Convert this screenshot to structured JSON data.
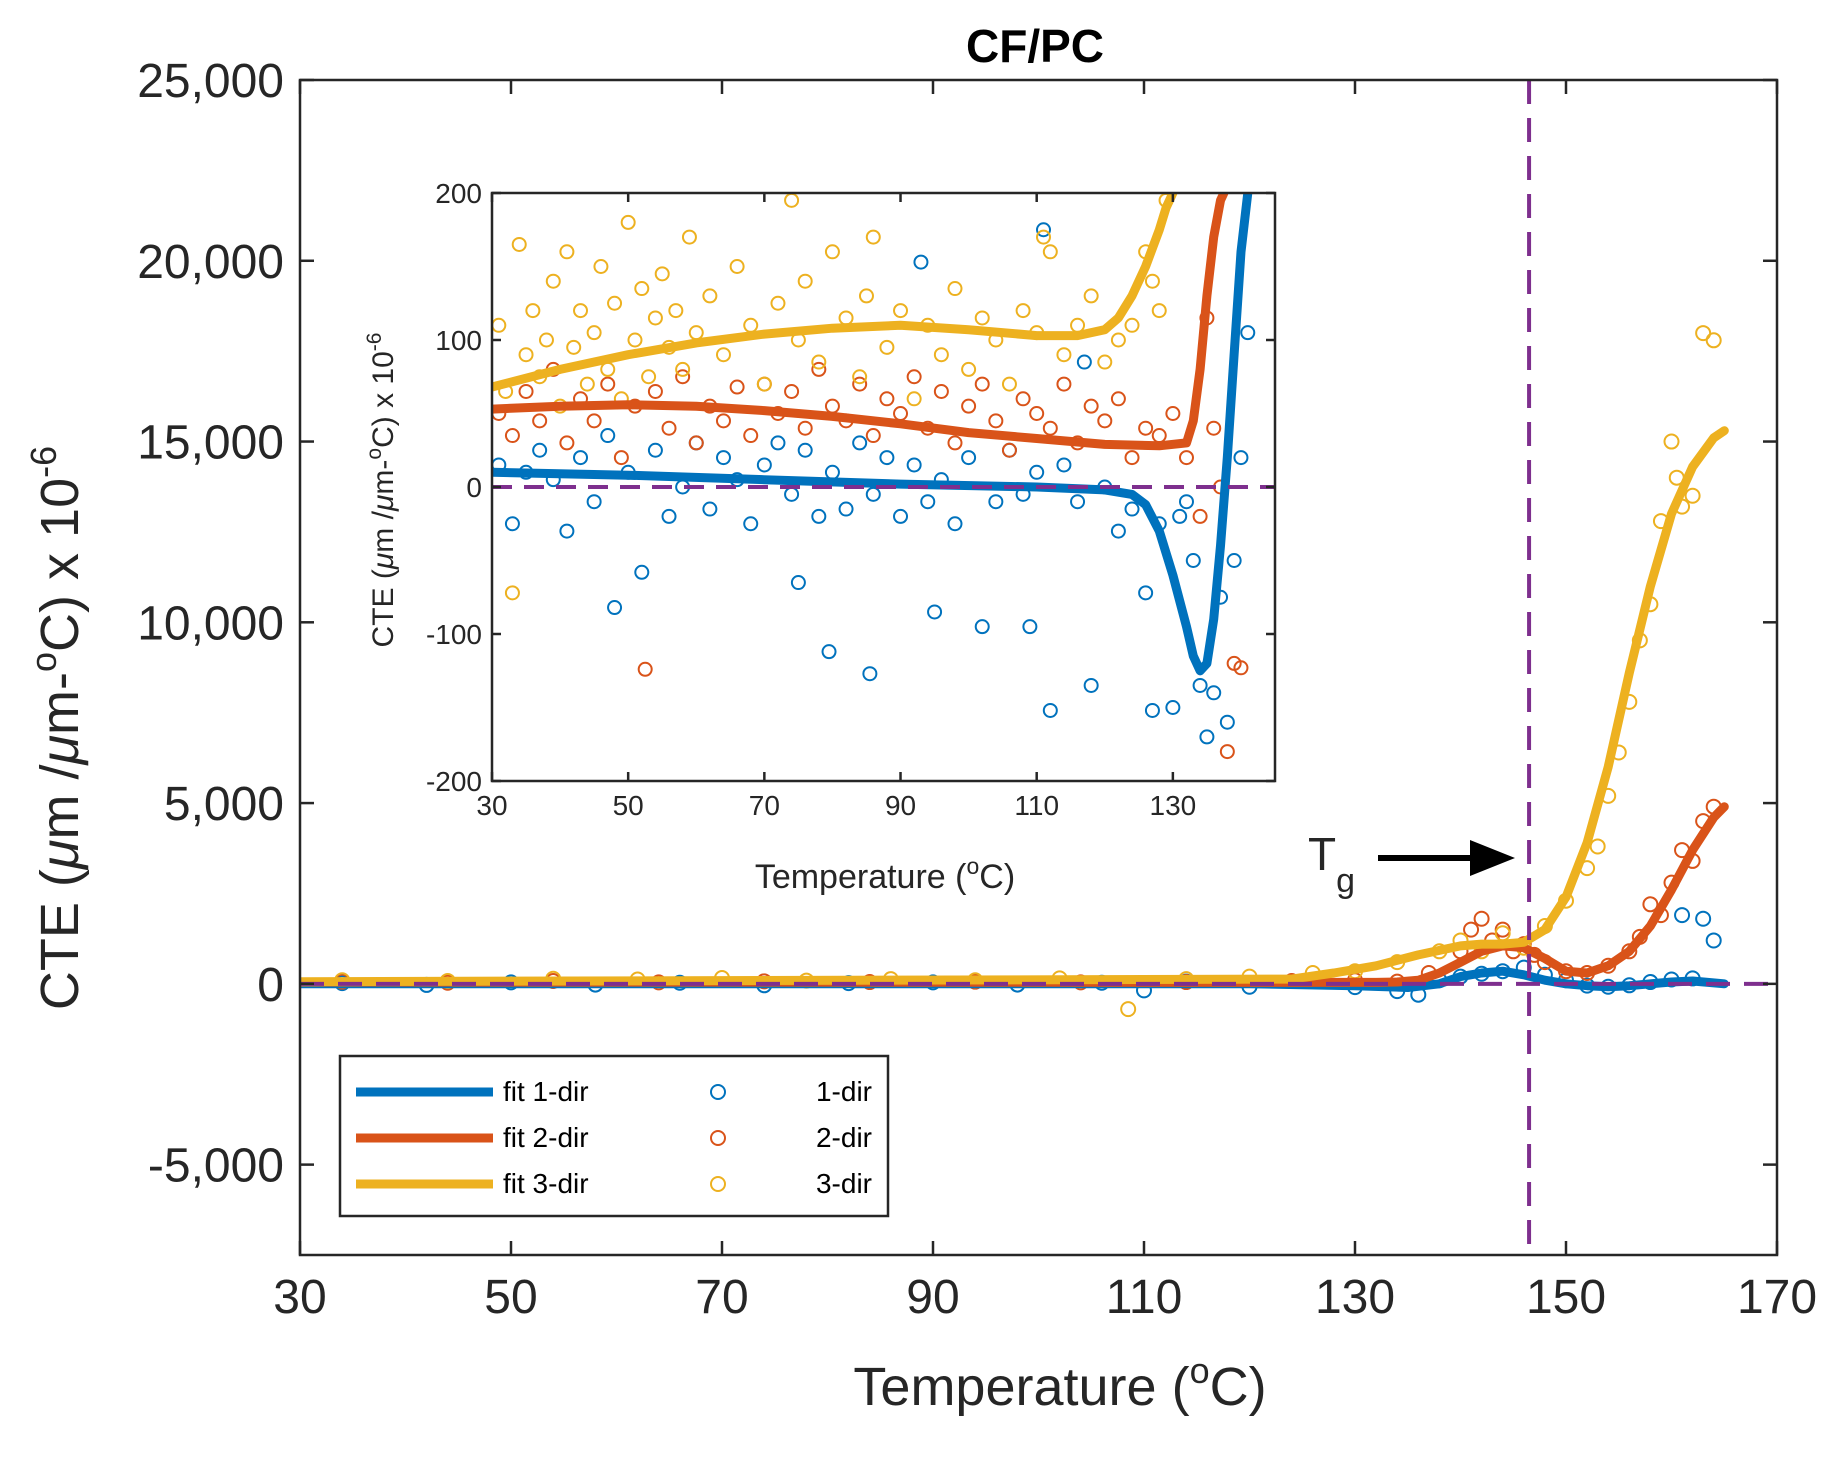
{
  "chart_data": [
    {
      "id": "main",
      "type": "scatter",
      "title": "CF/PC",
      "xlabel": {
        "pre": "Temperature (",
        "sup": "o",
        "post": "C)"
      },
      "ylabel": {
        "pre": "CTE (",
        "mu1": "μ",
        "mid1": "m /",
        "mu2": "μ",
        "mid2": "m-",
        "sup1": "o",
        "mid3": "C) x 10",
        "sup2": "-6"
      },
      "xlim": [
        30,
        170
      ],
      "ylim": [
        -7500,
        25000
      ],
      "xticks": [
        30,
        50,
        70,
        90,
        110,
        130,
        150,
        170
      ],
      "xtick_labels": [
        "30",
        "50",
        "70",
        "90",
        "110",
        "130",
        "150",
        "170"
      ],
      "yticks": [
        -5000,
        0,
        5000,
        10000,
        15000,
        20000,
        25000
      ],
      "ytick_labels": [
        "-5,000",
        "0",
        "5,000",
        "10,000",
        "15,000",
        "20,000",
        "25,000"
      ],
      "reference_lines": [
        {
          "orientation": "horizontal",
          "value": 0,
          "style": "dashed",
          "color": "#7E2F8E"
        },
        {
          "orientation": "vertical",
          "value": 146.5,
          "style": "dashed",
          "color": "#7E2F8E"
        }
      ],
      "annotation": {
        "text": "T",
        "sub": "g",
        "arrow": "points right to Tg line",
        "x": 146.5,
        "y": 3600
      },
      "fit_series": [
        {
          "name": "fit 1-dir",
          "color": "#0072BD",
          "x": [
            30,
            120,
            130,
            135,
            138,
            140,
            142,
            144,
            146,
            148,
            150,
            152,
            154,
            156,
            158,
            160,
            162,
            165
          ],
          "y": [
            0,
            0,
            -50,
            -100,
            0,
            200,
            300,
            350,
            250,
            100,
            0,
            -50,
            -80,
            -50,
            0,
            50,
            80,
            0
          ]
        },
        {
          "name": "fit 2-dir",
          "color": "#D95319",
          "x": [
            30,
            132,
            134,
            136,
            138,
            140,
            142,
            144,
            146,
            148,
            150,
            152,
            154,
            156,
            158,
            160,
            162,
            164,
            165
          ],
          "y": [
            50,
            40,
            50,
            100,
            300,
            600,
            900,
            1050,
            1000,
            700,
            350,
            300,
            500,
            900,
            1600,
            2600,
            3700,
            4600,
            4900
          ]
        },
        {
          "name": "fit 3-dir",
          "color": "#EDB120",
          "x": [
            30,
            124,
            128,
            132,
            136,
            140,
            142,
            144,
            146,
            148,
            150,
            152,
            154,
            156,
            158,
            160,
            162,
            164,
            165
          ],
          "y": [
            60,
            130,
            300,
            500,
            800,
            1050,
            1100,
            1100,
            1150,
            1500,
            2400,
            3900,
            6000,
            8600,
            11000,
            13000,
            14300,
            15100,
            15300
          ]
        }
      ],
      "scatter_series": [
        {
          "name": "1-dir",
          "color": "#0072BD",
          "x": [
            34,
            42,
            50,
            58,
            66,
            74,
            82,
            90,
            98,
            106,
            110,
            114,
            120,
            126,
            130,
            134,
            136,
            138,
            140,
            142,
            144,
            146,
            148,
            150,
            152,
            154,
            156,
            158,
            160,
            161,
            162,
            163,
            164
          ],
          "y": [
            20,
            -30,
            40,
            -20,
            30,
            -40,
            20,
            40,
            -20,
            30,
            -180,
            60,
            -80,
            100,
            -90,
            -200,
            -300,
            100,
            200,
            280,
            350,
            450,
            250,
            100,
            -50,
            -80,
            -40,
            50,
            120,
            1900,
            150,
            1800,
            1200
          ]
        },
        {
          "name": "2-dir",
          "color": "#D95319",
          "x": [
            34,
            44,
            54,
            64,
            74,
            84,
            94,
            104,
            114,
            124,
            130,
            134,
            137,
            140,
            141,
            142,
            143,
            144,
            145,
            146,
            147,
            148,
            150,
            152,
            154,
            156,
            157,
            158,
            159,
            160,
            161,
            162,
            163,
            164
          ],
          "y": [
            60,
            30,
            80,
            40,
            70,
            50,
            60,
            40,
            50,
            80,
            100,
            60,
            300,
            900,
            1500,
            1800,
            1200,
            1500,
            900,
            1100,
            800,
            600,
            350,
            300,
            500,
            900,
            1300,
            2200,
            1900,
            2800,
            3700,
            3400,
            4500,
            4900
          ]
        },
        {
          "name": "3-dir",
          "color": "#EDB120",
          "x": [
            34,
            44,
            54,
            62,
            70,
            78,
            86,
            94,
            102,
            108.5,
            114,
            120,
            126,
            130,
            134,
            138,
            140,
            142,
            144,
            146,
            148,
            150,
            152,
            153,
            154,
            155,
            156,
            157,
            158,
            159,
            160,
            160.5,
            161,
            162,
            163,
            164
          ],
          "y": [
            100,
            80,
            140,
            120,
            160,
            90,
            130,
            100,
            150,
            -700,
            130,
            200,
            300,
            350,
            600,
            900,
            1200,
            900,
            1400,
            1000,
            1600,
            2300,
            3200,
            3800,
            5200,
            6400,
            7800,
            9500,
            10500,
            12800,
            15000,
            14000,
            13200,
            13500,
            18000,
            17800
          ]
        }
      ]
    },
    {
      "id": "inset",
      "type": "scatter",
      "xlabel": {
        "pre": "Temperature (",
        "sup": "o",
        "post": "C)"
      },
      "ylabel": {
        "pre": "CTE (",
        "mu1": "μ",
        "mid1": "m /",
        "mu2": "μ",
        "mid2": "m-",
        "sup1": "o",
        "mid3": "C) x 10",
        "sup2": "-6"
      },
      "xlim": [
        30,
        145
      ],
      "ylim": [
        -200,
        200
      ],
      "xticks": [
        30,
        50,
        70,
        90,
        110,
        130
      ],
      "xtick_labels": [
        "30",
        "50",
        "70",
        "90",
        "110",
        "130"
      ],
      "yticks": [
        -200,
        -100,
        0,
        100,
        200
      ],
      "ytick_labels": [
        "-200",
        "-100",
        "0",
        "100",
        "200"
      ],
      "reference_lines": [
        {
          "orientation": "horizontal",
          "value": 0,
          "style": "dashed",
          "color": "#7E2F8E"
        }
      ],
      "fit_series": [
        {
          "name": "fit 1-dir",
          "color": "#0072BD",
          "x": [
            30,
            50,
            70,
            90,
            110,
            120,
            124,
            126,
            128,
            130,
            132,
            133,
            134,
            135,
            136,
            137,
            138,
            139,
            140,
            141
          ],
          "y": [
            10,
            8,
            5,
            2,
            0,
            -2,
            -5,
            -12,
            -30,
            -60,
            -95,
            -115,
            -125,
            -120,
            -90,
            -40,
            20,
            90,
            160,
            200
          ]
        },
        {
          "name": "fit 2-dir",
          "color": "#D95319",
          "x": [
            30,
            40,
            50,
            60,
            70,
            80,
            90,
            100,
            110,
            120,
            128,
            132,
            133,
            134,
            135,
            136,
            137,
            137.5
          ],
          "y": [
            53,
            55,
            56,
            55,
            52,
            48,
            43,
            37,
            33,
            29,
            28,
            30,
            45,
            80,
            130,
            170,
            195,
            200
          ]
        },
        {
          "name": "fit 3-dir",
          "color": "#EDB120",
          "x": [
            30,
            40,
            50,
            60,
            70,
            80,
            90,
            100,
            110,
            116,
            120,
            122,
            124,
            126,
            128,
            129,
            130
          ],
          "y": [
            68,
            80,
            90,
            98,
            104,
            108,
            110,
            107,
            103,
            103,
            107,
            115,
            130,
            150,
            175,
            190,
            200
          ]
        }
      ],
      "scatter_series": [
        {
          "name": "1-dir",
          "color": "#0072BD",
          "x": [
            31,
            33,
            35,
            37,
            39,
            41,
            43,
            45,
            47,
            48,
            50,
            52,
            54,
            56,
            58,
            60,
            62,
            64,
            66,
            68,
            70,
            72,
            74,
            75,
            76,
            78,
            79.5,
            80,
            82,
            84,
            85.5,
            86,
            88,
            90,
            92,
            93,
            94,
            95,
            96,
            98,
            100,
            102,
            104,
            106,
            108,
            109,
            110,
            111,
            112,
            114,
            116,
            117,
            118,
            120,
            122,
            124,
            126,
            127,
            128,
            130,
            131,
            132,
            133,
            134,
            135,
            136,
            137,
            138,
            139,
            140,
            141
          ],
          "y": [
            15,
            -25,
            10,
            25,
            5,
            -30,
            20,
            -10,
            35,
            -82,
            10,
            -58,
            25,
            -20,
            0,
            30,
            -15,
            20,
            5,
            -25,
            15,
            30,
            -5,
            -65,
            25,
            -20,
            -112,
            10,
            -15,
            30,
            -127,
            -5,
            20,
            -20,
            15,
            153,
            -10,
            -85,
            5,
            -25,
            20,
            -95,
            -10,
            25,
            -5,
            -95,
            10,
            175,
            -152,
            15,
            -10,
            85,
            -135,
            0,
            -30,
            -15,
            -72,
            -152,
            -25,
            -150,
            -20,
            -10,
            -50,
            -135,
            -170,
            -140,
            -75,
            -160,
            -50,
            20,
            105
          ]
        },
        {
          "name": "2-dir",
          "color": "#D95319",
          "x": [
            31,
            33,
            35,
            37,
            39,
            41,
            43,
            45,
            47,
            49,
            51,
            52.5,
            54,
            56,
            58,
            60,
            62,
            64,
            66,
            68,
            70,
            72,
            74,
            76,
            78,
            80,
            82,
            84,
            86,
            88,
            90,
            92,
            94,
            96,
            98,
            100,
            102,
            104,
            106,
            108,
            110,
            112,
            114,
            116,
            118,
            120,
            122,
            124,
            126,
            128,
            130,
            132,
            134,
            135,
            136,
            137,
            138,
            139,
            140
          ],
          "y": [
            50,
            35,
            65,
            45,
            80,
            30,
            60,
            45,
            70,
            20,
            55,
            -124,
            65,
            40,
            75,
            30,
            55,
            45,
            68,
            35,
            70,
            50,
            65,
            40,
            80,
            55,
            45,
            70,
            35,
            60,
            50,
            75,
            40,
            65,
            30,
            55,
            70,
            45,
            25,
            60,
            50,
            40,
            70,
            30,
            55,
            45,
            60,
            20,
            40,
            35,
            50,
            20,
            -20,
            115,
            40,
            0,
            -180,
            -120,
            -123
          ]
        },
        {
          "name": "3-dir",
          "color": "#EDB120",
          "x": [
            31,
            32,
            33,
            34,
            35,
            36,
            37,
            38,
            39,
            40,
            41,
            42,
            43,
            44,
            45,
            46,
            47,
            48,
            49,
            50,
            51,
            52,
            53,
            54,
            55,
            56,
            57,
            58,
            59,
            60,
            62,
            64,
            66,
            68,
            70,
            72,
            74,
            75,
            76,
            78,
            80,
            82,
            84,
            85,
            86,
            88,
            90,
            92,
            94,
            96,
            98,
            100,
            102,
            104,
            106,
            108,
            110,
            111,
            112,
            114,
            116,
            118,
            120,
            122,
            124,
            126,
            127,
            128,
            129
          ],
          "y": [
            110,
            65,
            -72,
            165,
            90,
            120,
            75,
            100,
            140,
            55,
            160,
            95,
            120,
            70,
            105,
            150,
            80,
            125,
            60,
            180,
            100,
            135,
            75,
            115,
            145,
            95,
            120,
            80,
            170,
            105,
            130,
            90,
            150,
            110,
            70,
            125,
            195,
            100,
            140,
            85,
            160,
            115,
            75,
            130,
            170,
            95,
            120,
            60,
            110,
            90,
            135,
            80,
            115,
            100,
            70,
            120,
            105,
            170,
            160,
            90,
            110,
            130,
            85,
            100,
            110,
            160,
            140,
            120,
            195
          ]
        }
      ]
    }
  ],
  "legend": {
    "items": [
      {
        "label": "fit 1-dir",
        "kind": "line",
        "color": "#0072BD"
      },
      {
        "label": "fit 2-dir",
        "kind": "line",
        "color": "#D95319"
      },
      {
        "label": "fit 3-dir",
        "kind": "line",
        "color": "#EDB120"
      },
      {
        "label": "1-dir",
        "kind": "marker",
        "color": "#0072BD"
      },
      {
        "label": "2-dir",
        "kind": "marker",
        "color": "#D95319"
      },
      {
        "label": "3-dir",
        "kind": "marker",
        "color": "#EDB120"
      }
    ],
    "placement": "bottom-left"
  }
}
